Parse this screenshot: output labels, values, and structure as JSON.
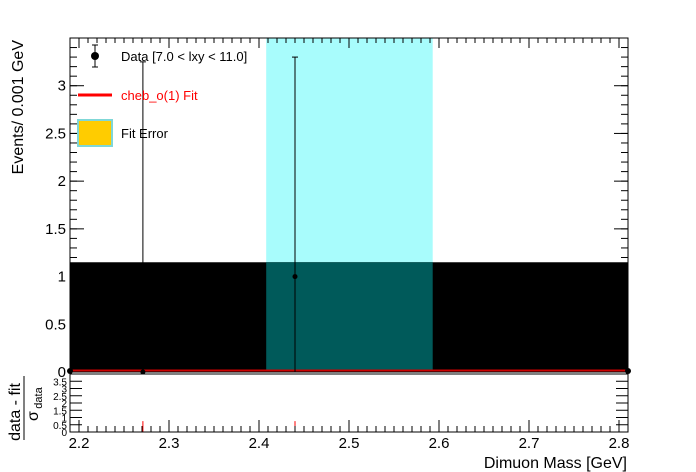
{
  "chart_data": [
    {
      "type": "line",
      "panel": "main",
      "xlabel": "",
      "ylabel": "Events/ 0.001 GeV",
      "xlim": [
        2.19,
        2.81
      ],
      "ylim": [
        0,
        3.5
      ],
      "yticks": [
        "0",
        "0.5",
        "1",
        "1.5",
        "2",
        "2.5",
        "3"
      ],
      "ytick_values": [
        0,
        0.5,
        1,
        1.5,
        2,
        2.5,
        3
      ],
      "grid": false,
      "legend_position": "top-left",
      "legend": [
        {
          "label": "Data [7.0 < lxy < 11.0]",
          "kind": "marker",
          "color": "#000000"
        },
        {
          "label": "cheb_o(1) Fit",
          "kind": "line",
          "color": "#ff0000"
        },
        {
          "label": "Fit Error",
          "kind": "box",
          "color": "#ffcc00",
          "border": "#7fd7d7"
        }
      ],
      "signal_band": {
        "x": [
          2.408,
          2.593
        ],
        "color": "#a8fcfc"
      },
      "error_band": {
        "y": [
          0,
          1.15
        ],
        "color": "#000000",
        "overlap_color": "#005a5a"
      },
      "fit_line": {
        "y": 0.0,
        "color": "#cc0000"
      },
      "data_points": [
        {
          "x": 2.271,
          "y": 0,
          "yerr_high": 3.25
        },
        {
          "x": 2.44,
          "y": 1,
          "yerr_low": 1,
          "yerr_high": 2.3
        }
      ]
    },
    {
      "type": "line",
      "panel": "pull",
      "xlabel": "Dimuon Mass [GeV]",
      "ylabel": "data - fit / σdata",
      "ylabel_numerator": "data - fit",
      "ylabel_denominator": "σ",
      "ylabel_subscript": "data",
      "xlim": [
        2.19,
        2.81
      ],
      "ylim": [
        0,
        4
      ],
      "xticks": [
        "2.2",
        "2.3",
        "2.4",
        "2.5",
        "2.6",
        "2.7",
        "2.8"
      ],
      "xtick_values": [
        2.2,
        2.3,
        2.4,
        2.5,
        2.6,
        2.7,
        2.8
      ],
      "yticks": [
        "0",
        "0.5",
        "1",
        "1.5",
        "2",
        "2.5",
        "3",
        "3.5"
      ],
      "ytick_values": [
        0,
        0.5,
        1,
        1.5,
        2,
        2.5,
        3,
        3.5
      ],
      "zero_line_color": "#ff0000",
      "pulls": [
        {
          "x": 2.271,
          "y": 0.75
        },
        {
          "x": 2.44,
          "y": 0.75
        }
      ]
    }
  ]
}
